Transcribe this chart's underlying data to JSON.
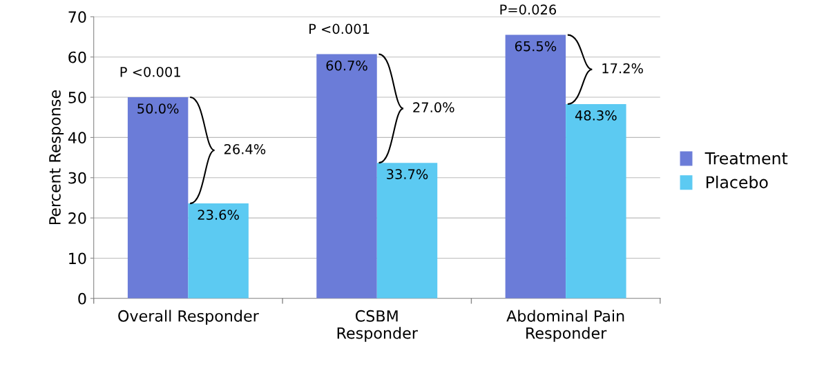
{
  "chart_data": {
    "type": "bar",
    "ylabel": "Percent Response",
    "categories": [
      "Overall Responder",
      "CSBM\nResponder",
      "Abdominal Pain\nResponder"
    ],
    "series": [
      {
        "name": "Treatment",
        "color": "#6b7cd8",
        "values": [
          50.0,
          60.7,
          65.5
        ],
        "value_labels": [
          "50.0%",
          "60.7%",
          "65.5%"
        ]
      },
      {
        "name": "Placebo",
        "color": "#5ccaf2",
        "values": [
          23.6,
          33.7,
          48.3
        ],
        "value_labels": [
          "23.6%",
          "33.7%",
          "48.3%"
        ]
      }
    ],
    "annotations": [
      "P <0.001",
      "P <0.001",
      "P=0.026",
      {
        "text": "26.4%",
        "x": "Overall Responder",
        "y": 36.8
      },
      {
        "text": "27.0%",
        "x": "CSBM\nResponder",
        "y": 47.2
      },
      {
        "text": "17.2%",
        "x": "Abdominal Pain\nResponder",
        "y": 56.9
      }
    ],
    "ylim": [
      0,
      70
    ],
    "yticks": [
      0,
      10,
      20,
      30,
      40,
      50,
      60,
      70
    ],
    "grid": "y",
    "legend": "right"
  }
}
